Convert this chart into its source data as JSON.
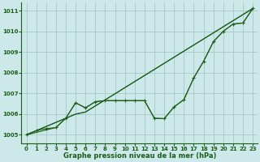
{
  "xlabel": "Graphe pression niveau de la mer (hPa)",
  "xlim": [
    -0.5,
    23.5
  ],
  "ylim": [
    1004.6,
    1011.4
  ],
  "yticks": [
    1005,
    1006,
    1007,
    1008,
    1009,
    1010,
    1011
  ],
  "xticks": [
    0,
    1,
    2,
    3,
    4,
    5,
    6,
    7,
    8,
    9,
    10,
    11,
    12,
    13,
    14,
    15,
    16,
    17,
    18,
    19,
    20,
    21,
    22,
    23
  ],
  "bg_color": "#cce8e8",
  "grid_color": "#aacccc",
  "line_color": "#1a5e1a",
  "series": [
    {
      "x": [
        0,
        1,
        2,
        3,
        4,
        5,
        6,
        7,
        8,
        9,
        10,
        11,
        12,
        13,
        14,
        15,
        16,
        17,
        18,
        19,
        20,
        21,
        22,
        23
      ],
      "y": [
        1005.0,
        1005.2,
        1005.3,
        1005.35,
        1005.8,
        1006.55,
        1006.3,
        1006.6,
        1006.65,
        1006.65,
        1006.65,
        1006.65,
        1006.65,
        1005.8,
        1005.78,
        1006.35,
        1006.7,
        1007.75,
        1008.55,
        1009.5,
        1010.0,
        1010.35,
        1010.4,
        1011.1
      ],
      "marker": "+"
    },
    {
      "x": [
        0,
        4,
        5,
        6,
        23
      ],
      "y": [
        1005.0,
        1005.8,
        1006.0,
        1006.1,
        1011.1
      ],
      "marker": null
    },
    {
      "x": [
        0,
        4,
        5,
        6,
        7,
        8,
        9,
        10,
        11,
        12,
        13,
        14,
        15,
        16,
        17,
        18,
        19,
        20,
        21,
        22,
        23
      ],
      "y": [
        1005.0,
        1005.8,
        1006.55,
        1006.3,
        1006.6,
        1006.65,
        1006.65,
        1006.65,
        1006.65,
        1006.65,
        1005.8,
        1005.78,
        1006.35,
        1006.7,
        1007.75,
        1008.55,
        1009.5,
        1010.0,
        1010.35,
        1010.4,
        1011.1
      ],
      "marker": null
    },
    {
      "x": [
        0,
        3,
        4,
        5,
        6,
        23
      ],
      "y": [
        1005.0,
        1005.35,
        1005.8,
        1006.0,
        1006.1,
        1011.1
      ],
      "marker": null
    }
  ],
  "figsize": [
    3.2,
    2.0
  ],
  "dpi": 100,
  "tick_labelsize": 5.0,
  "xlabel_fontsize": 6.0
}
